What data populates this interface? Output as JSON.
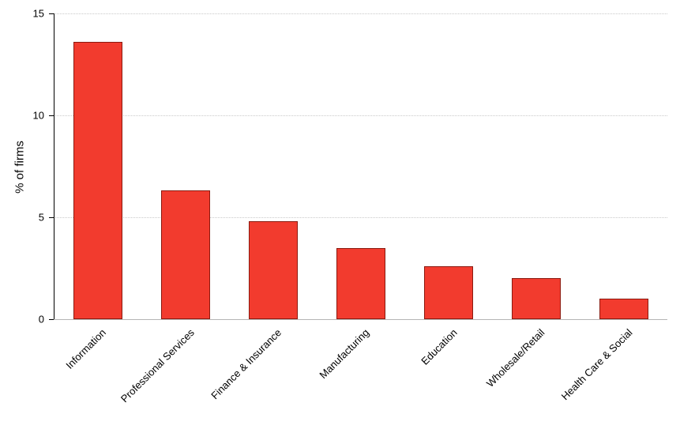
{
  "chart_data": {
    "type": "bar",
    "categories": [
      "Information",
      "Professional Services",
      "Finance & Insurance",
      "Manufacturing",
      "Education",
      "Wholesale/Retail",
      "Health Care & Social"
    ],
    "values": [
      13.6,
      6.3,
      4.8,
      3.5,
      2.6,
      2.0,
      1.0
    ],
    "title": "",
    "xlabel": "",
    "ylabel": "% of firms",
    "ylim": [
      0,
      15
    ],
    "yticks": [
      0,
      5,
      10,
      15
    ],
    "grid": "horizontal-dotted",
    "legend": "none",
    "bar_fill": "#f23b2e",
    "bar_border": "#8b1a10",
    "gridline_color": "#c9c9c9",
    "axis_color": "#000000",
    "baseline_color": "#b5b5b5",
    "background": "#ffffff"
  }
}
